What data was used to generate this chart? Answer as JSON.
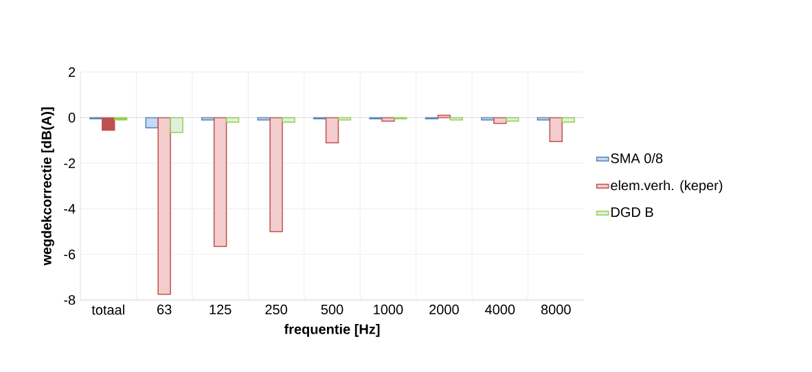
{
  "chart_data": {
    "type": "bar",
    "xlabel": "frequentie [Hz]",
    "ylabel": "wegdekcorrectie [dB(A)]",
    "categories": [
      "totaal",
      "63",
      "125",
      "250",
      "500",
      "1000",
      "2000",
      "4000",
      "8000"
    ],
    "series": [
      {
        "name": "SMA 0/8",
        "color": "#4f81bd",
        "colors": [
          "#4f81bd",
          "#c6d9f1",
          "#c6d9f1",
          "#c6d9f1",
          "#c6d9f1",
          "#c6d9f1",
          "#c6d9f1",
          "#c6d9f1",
          "#c6d9f1"
        ],
        "values": [
          -0.05,
          -0.45,
          -0.1,
          -0.1,
          -0.05,
          -0.05,
          -0.05,
          -0.1,
          -0.1
        ]
      },
      {
        "name": "elem.verh. (keper)",
        "color": "#c0504d",
        "colors": [
          "#c0504d",
          "#f2cdcc",
          "#f2cdcc",
          "#f2cdcc",
          "#f2cdcc",
          "#f2cdcc",
          "#f2cdcc",
          "#f2cdcc",
          "#f2cdcc"
        ],
        "values": [
          -0.55,
          -7.75,
          -5.65,
          -5.0,
          -1.1,
          -0.15,
          0.1,
          -0.25,
          -1.05
        ]
      },
      {
        "name": "DGD B",
        "color": "#92d050",
        "colors": [
          "#92d050",
          "#e2f0d9",
          "#e2f0d9",
          "#e2f0d9",
          "#e2f0d9",
          "#e2f0d9",
          "#e2f0d9",
          "#e2f0d9",
          "#e2f0d9"
        ],
        "values": [
          -0.1,
          -0.65,
          -0.2,
          -0.2,
          -0.1,
          -0.05,
          -0.1,
          -0.15,
          -0.2
        ]
      }
    ],
    "ylim": [
      -8,
      2
    ],
    "yticks": [
      -8,
      -6,
      -4,
      -2,
      0,
      2
    ],
    "grid": true,
    "legend": "right"
  }
}
